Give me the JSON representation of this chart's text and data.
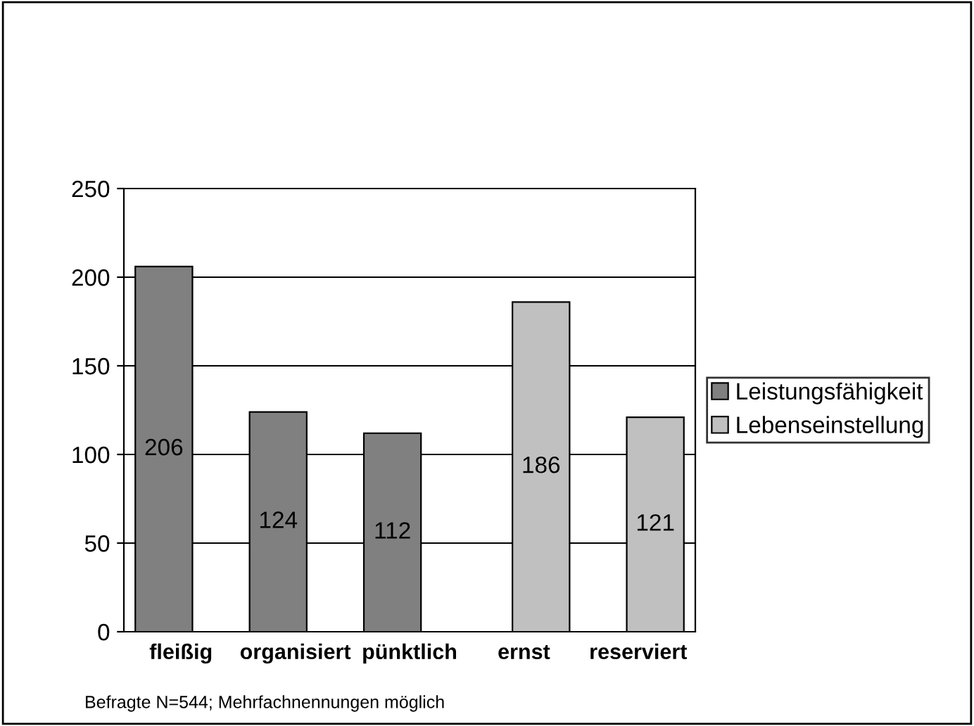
{
  "chart_data": {
    "type": "bar",
    "categories": [
      "fleißig",
      "organisiert",
      "pünktlich",
      "ernst",
      "reserviert"
    ],
    "series": [
      {
        "name": "Leistungsfähigkeit",
        "color": "#808080",
        "values": [
          206,
          124,
          112,
          null,
          null
        ]
      },
      {
        "name": "Lebenseinstellung",
        "color": "#c0c0c0",
        "values": [
          null,
          null,
          null,
          186,
          121
        ]
      }
    ],
    "ylim": [
      0,
      250
    ],
    "yticks": [
      0,
      50,
      100,
      150,
      200,
      250
    ],
    "grid": "y",
    "legend": "right",
    "data_labels": true,
    "annotations": [
      "Befragte N=544; Mehrfachnennungen möglich"
    ]
  }
}
